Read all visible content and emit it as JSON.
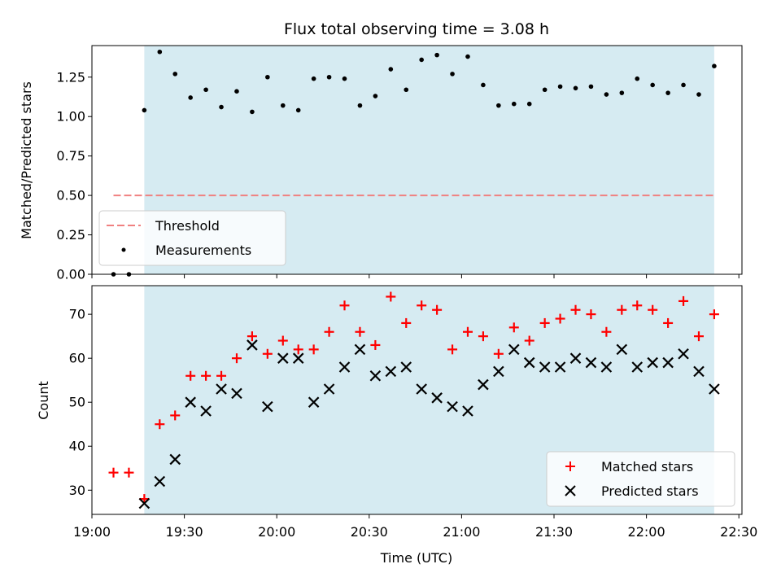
{
  "chart_data": [
    {
      "type": "scatter",
      "title": "Flux total observing time = 3.08 h",
      "xlabel": "",
      "ylabel": "Matched/Predicted stars",
      "ylim": [
        0,
        1.45
      ],
      "yticks": [
        "0.00",
        "0.25",
        "0.50",
        "0.75",
        "1.00",
        "1.25"
      ],
      "ytick_values": [
        0,
        0.25,
        0.5,
        0.75,
        1.0,
        1.25
      ],
      "shaded_region": {
        "x_start": "19:17",
        "x_end": "22:22",
        "color": "#add8e6"
      },
      "threshold": {
        "name": "Threshold",
        "value": 0.5,
        "x_start": "19:07",
        "x_end": "22:22",
        "color": "#f08080"
      },
      "legend_position": "lower-left",
      "series": [
        {
          "name": "Measurements",
          "color": "#000000",
          "x": [
            "19:07",
            "19:12",
            "19:17",
            "19:22",
            "19:27",
            "19:32",
            "19:37",
            "19:42",
            "19:47",
            "19:52",
            "19:57",
            "20:02",
            "20:07",
            "20:12",
            "20:17",
            "20:22",
            "20:27",
            "20:32",
            "20:37",
            "20:42",
            "20:47",
            "20:52",
            "20:57",
            "21:02",
            "21:07",
            "21:12",
            "21:17",
            "21:22",
            "21:27",
            "21:32",
            "21:37",
            "21:42",
            "21:47",
            "21:52",
            "21:57",
            "22:02",
            "22:07",
            "22:12",
            "22:17",
            "22:22"
          ],
          "values": [
            0.0,
            0.0,
            1.04,
            1.41,
            1.27,
            1.12,
            1.17,
            1.06,
            1.16,
            1.03,
            1.25,
            1.07,
            1.04,
            1.24,
            1.25,
            1.24,
            1.07,
            1.13,
            1.3,
            1.17,
            1.36,
            1.39,
            1.27,
            1.38,
            1.2,
            1.07,
            1.08,
            1.08,
            1.17,
            1.19,
            1.18,
            1.19,
            1.14,
            1.15,
            1.24,
            1.2,
            1.15,
            1.2,
            1.14,
            1.32
          ]
        }
      ]
    },
    {
      "type": "scatter",
      "title": "",
      "xlabel": "Time (UTC)",
      "ylabel": "Count",
      "ylim": [
        24.5,
        76.5
      ],
      "xlim": [
        "19:00",
        "22:31"
      ],
      "xticks": [
        "19:00",
        "19:30",
        "20:00",
        "20:30",
        "21:00",
        "21:30",
        "22:00",
        "22:30"
      ],
      "yticks": [
        "30",
        "40",
        "50",
        "60",
        "70"
      ],
      "ytick_values": [
        30,
        40,
        50,
        60,
        70
      ],
      "legend_position": "lower-right",
      "series": [
        {
          "name": "Matched stars",
          "marker": "plus",
          "color": "#ff0000",
          "x": [
            "19:07",
            "19:12",
            "19:17",
            "19:22",
            "19:27",
            "19:32",
            "19:37",
            "19:42",
            "19:47",
            "19:52",
            "19:57",
            "20:02",
            "20:07",
            "20:12",
            "20:17",
            "20:22",
            "20:27",
            "20:32",
            "20:37",
            "20:42",
            "20:47",
            "20:52",
            "20:57",
            "21:02",
            "21:07",
            "21:12",
            "21:17",
            "21:22",
            "21:27",
            "21:32",
            "21:37",
            "21:42",
            "21:47",
            "21:52",
            "21:57",
            "22:02",
            "22:07",
            "22:12",
            "22:17",
            "22:22"
          ],
          "values": [
            34,
            34,
            28,
            45,
            47,
            56,
            56,
            56,
            60,
            65,
            61,
            64,
            62,
            62,
            66,
            72,
            66,
            63,
            74,
            68,
            72,
            71,
            62,
            66,
            65,
            61,
            67,
            64,
            68,
            69,
            71,
            70,
            66,
            71,
            72,
            71,
            68,
            73,
            65,
            70
          ]
        },
        {
          "name": "Predicted stars",
          "marker": "x",
          "color": "#000000",
          "x": [
            "19:17",
            "19:22",
            "19:27",
            "19:32",
            "19:37",
            "19:42",
            "19:47",
            "19:52",
            "19:57",
            "20:02",
            "20:07",
            "20:12",
            "20:17",
            "20:22",
            "20:27",
            "20:32",
            "20:37",
            "20:42",
            "20:47",
            "20:52",
            "20:57",
            "21:02",
            "21:07",
            "21:12",
            "21:17",
            "21:22",
            "21:27",
            "21:32",
            "21:37",
            "21:42",
            "21:47",
            "21:52",
            "21:57",
            "22:02",
            "22:07",
            "22:12",
            "22:17",
            "22:22"
          ],
          "values": [
            27,
            32,
            37,
            50,
            48,
            53,
            52,
            63,
            49,
            60,
            60,
            50,
            53,
            58,
            62,
            56,
            57,
            58,
            53,
            51,
            49,
            48,
            54,
            57,
            62,
            59,
            58,
            58,
            60,
            59,
            58,
            62,
            58,
            59,
            59,
            61,
            57,
            53
          ]
        }
      ]
    }
  ]
}
